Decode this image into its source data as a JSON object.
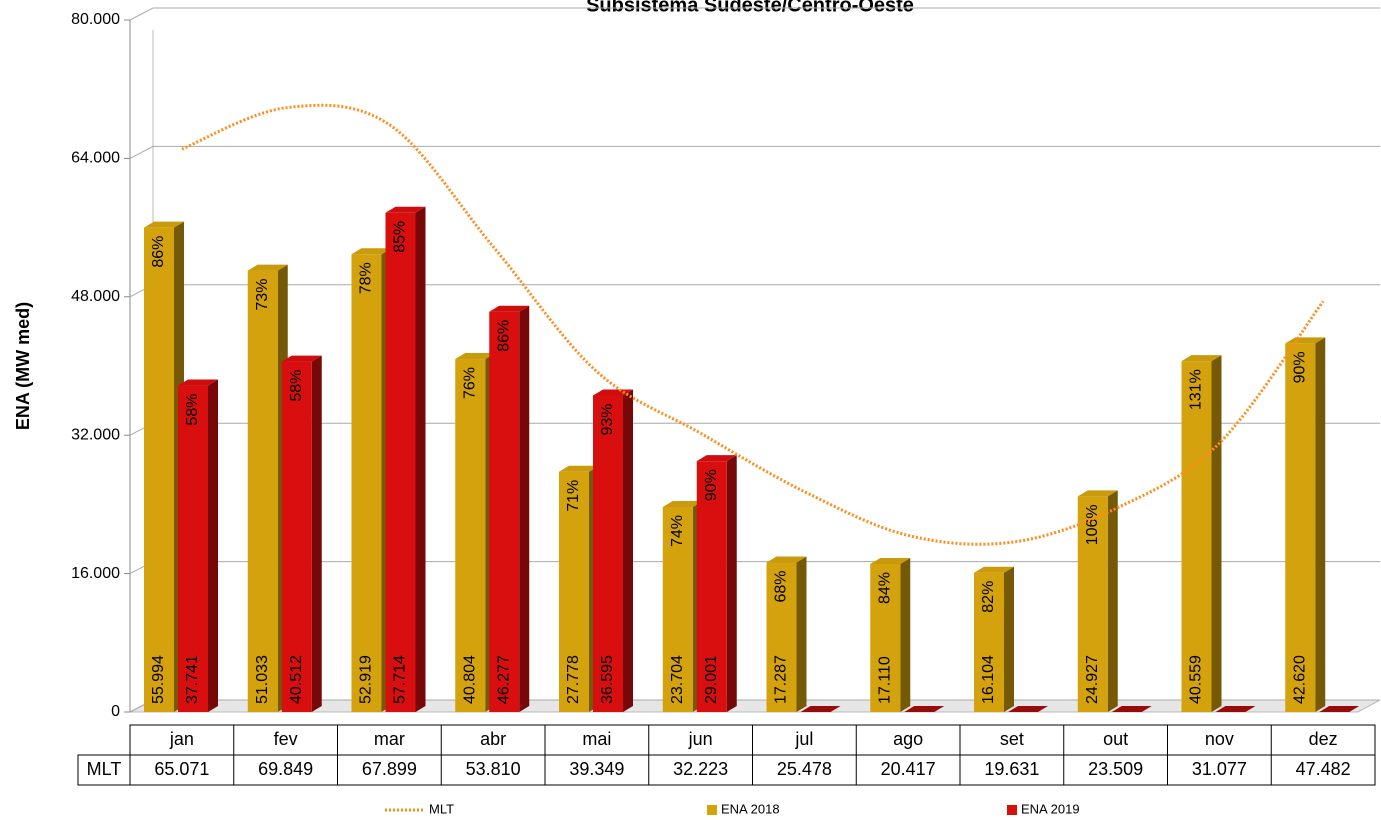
{
  "chart_data": {
    "type": "bar",
    "title": "Subsistema Sudeste/Centro-Oeste",
    "y_label": "ENA (MW med)",
    "categories": [
      "jan",
      "fev",
      "mar",
      "abr",
      "mai",
      "jun",
      "jul",
      "ago",
      "set",
      "out",
      "nov",
      "dez"
    ],
    "ylim": [
      0,
      80000
    ],
    "yticks": [
      0,
      {
        "value": 16000,
        "label": "16.000"
      },
      {
        "value": 32000,
        "label": "32.000"
      },
      {
        "value": 48000,
        "label": "48.000"
      },
      {
        "value": 64000,
        "label": "64.000"
      },
      {
        "value": 80000,
        "label": "80.000"
      }
    ],
    "grid": true,
    "legend": "bottom",
    "series": [
      {
        "name": "ENA 2018",
        "color": "#d4a20c",
        "values": [
          55994,
          51033,
          52919,
          40804,
          27778,
          23704,
          17287,
          17110,
          16104,
          24927,
          40559,
          42620
        ],
        "value_labels": [
          "55.994",
          "51.033",
          "52.919",
          "40.804",
          "27.778",
          "23.704",
          "17.287",
          "17.110",
          "16.104",
          "24.927",
          "40.559",
          "42.620"
        ],
        "percent_labels": [
          "86%",
          "73%",
          "78%",
          "76%",
          "71%",
          "74%",
          "68%",
          "84%",
          "82%",
          "106%",
          "131%",
          "90%"
        ]
      },
      {
        "name": "ENA 2019",
        "color": "#d90f0f",
        "values": [
          37741,
          40512,
          57714,
          46277,
          36595,
          29001,
          null,
          null,
          null,
          null,
          null,
          null
        ],
        "value_labels": [
          "37.741",
          "40.512",
          "57.714",
          "46.277",
          "36.595",
          "29.001",
          null,
          null,
          null,
          null,
          null,
          null
        ],
        "percent_labels": [
          "58%",
          "58%",
          "85%",
          "86%",
          "93%",
          "90%",
          null,
          null,
          null,
          null,
          null,
          null
        ]
      },
      {
        "name": "MLT",
        "type": "line",
        "color": "#ff8c1a",
        "values": [
          65071,
          69849,
          67899,
          53810,
          39349,
          32223,
          25478,
          20417,
          19631,
          23509,
          31077,
          47482
        ],
        "value_labels": [
          "65.071",
          "69.849",
          "67.899",
          "53.810",
          "39.349",
          "32.223",
          "25.478",
          "20.417",
          "19.631",
          "23.509",
          "31.077",
          "47.482"
        ]
      }
    ]
  }
}
